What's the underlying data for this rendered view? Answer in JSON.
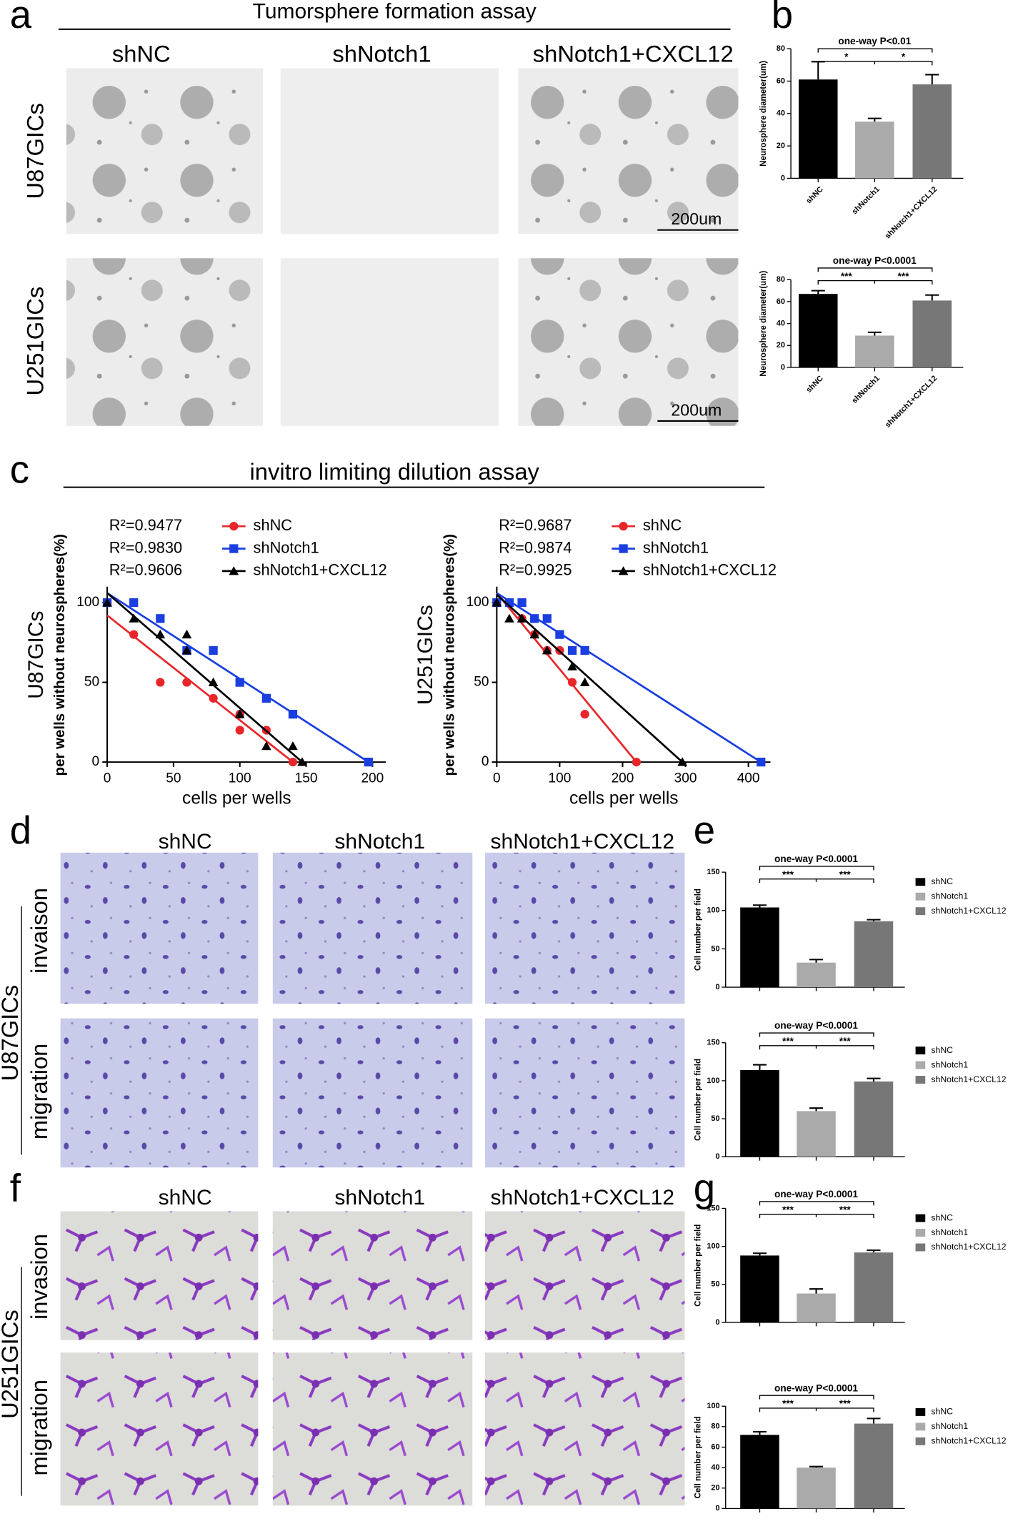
{
  "panel_labels": [
    "a",
    "b",
    "c",
    "d",
    "e",
    "f",
    "g"
  ],
  "tumorsphere": {
    "title": "Tumorsphere formation assay",
    "columns": [
      "shNC",
      "shNotch1",
      "shNotch1+CXCL12"
    ],
    "rows": [
      "U87GICs",
      "U251GICs"
    ],
    "scale_bar": "200um"
  },
  "dilution_title": "invitro limiting dilution assay",
  "transwell_u87": {
    "columns": [
      "shNC",
      "shNotch1",
      "shNotch1+CXCL12"
    ],
    "rows": [
      "invaison",
      "migration"
    ],
    "cell_line": "U87GICs"
  },
  "transwell_u251": {
    "columns": [
      "shNC",
      "shNotch1",
      "shNotch1+CXCL12"
    ],
    "rows": [
      "invasion",
      "migration"
    ],
    "cell_line": "U251GICs"
  },
  "chart_data": [
    {
      "type": "bar",
      "ylabel": "Neurosphere diameter(um)",
      "categories": [
        "shNC",
        "shNotch1",
        "shNotch1+CXCL12"
      ],
      "values": [
        61,
        35,
        58
      ],
      "errors": [
        11,
        2,
        6
      ],
      "colors": [
        "#000000",
        "#aaaaaa",
        "#777777"
      ],
      "ylim": [
        0,
        80
      ],
      "yticks": [
        0,
        20,
        40,
        60,
        80
      ],
      "annotations": {
        "overall": "one-way P<0.01",
        "left": "*",
        "right": "*"
      },
      "legend": false
    },
    {
      "type": "bar",
      "ylabel": "Neurosphere diameter(um)",
      "categories": [
        "shNC",
        "shNotch1",
        "shNotch1+CXCL12"
      ],
      "values": [
        67,
        29,
        61
      ],
      "errors": [
        3,
        3,
        5
      ],
      "colors": [
        "#000000",
        "#aaaaaa",
        "#777777"
      ],
      "ylim": [
        0,
        80
      ],
      "yticks": [
        0,
        20,
        40,
        60,
        80
      ],
      "annotations": {
        "overall": "one-way P<0.0001",
        "left": "***",
        "right": "***"
      },
      "legend": false
    },
    {
      "type": "scatter",
      "group": "U87GICs",
      "ylabel": "per wells without neurospheres(%)",
      "xlabel": "cells per wells",
      "xlim": [
        0,
        210
      ],
      "ylim": [
        0,
        110
      ],
      "xticks": [
        0,
        50,
        100,
        150,
        200
      ],
      "yticks": [
        0,
        50,
        100
      ],
      "series": [
        {
          "name": "shNC",
          "color": "#e8262a",
          "marker": "circle",
          "r2": "R²=0.9477",
          "x": [
            0,
            20,
            40,
            60,
            80,
            100,
            100,
            120,
            140
          ],
          "values": [
            100,
            80,
            50,
            50,
            40,
            20,
            30,
            20,
            0
          ],
          "fit_x": [
            0,
            140
          ],
          "fit_y": [
            92,
            0
          ]
        },
        {
          "name": "shNotch1",
          "color": "#1a3ee0",
          "marker": "square",
          "r2": "R²=0.9830",
          "x": [
            0,
            20,
            40,
            60,
            80,
            100,
            120,
            140,
            197
          ],
          "values": [
            100,
            100,
            90,
            70,
            70,
            50,
            40,
            30,
            0
          ],
          "fit_x": [
            0,
            197
          ],
          "fit_y": [
            106,
            0
          ]
        },
        {
          "name": "shNotch1+CXCL12",
          "color": "#000000",
          "marker": "triangle",
          "r2": "R²=0.9606",
          "x": [
            0,
            20,
            40,
            60,
            60,
            80,
            100,
            120,
            140,
            147
          ],
          "values": [
            100,
            90,
            80,
            80,
            70,
            50,
            30,
            10,
            10,
            0
          ],
          "fit_x": [
            0,
            147
          ],
          "fit_y": [
            106,
            0
          ]
        }
      ]
    },
    {
      "type": "scatter",
      "group": "U251GICs",
      "ylabel": "per wells without neurospheres(%)",
      "xlabel": "cells per wells",
      "xlim": [
        0,
        435
      ],
      "ylim": [
        0,
        110
      ],
      "xticks": [
        0,
        100,
        200,
        300,
        400
      ],
      "yticks": [
        0,
        50,
        100
      ],
      "series": [
        {
          "name": "shNC",
          "color": "#e8262a",
          "marker": "circle",
          "r2": "R²=0.9687",
          "x": [
            0,
            20,
            40,
            60,
            80,
            100,
            120,
            140,
            222
          ],
          "values": [
            100,
            100,
            90,
            80,
            70,
            70,
            50,
            30,
            0
          ],
          "fit_x": [
            0,
            222
          ],
          "fit_y": [
            106,
            0
          ]
        },
        {
          "name": "shNotch1",
          "color": "#1a3ee0",
          "marker": "square",
          "r2": "R²=0.9874",
          "x": [
            0,
            20,
            40,
            60,
            80,
            100,
            120,
            140,
            420
          ],
          "values": [
            100,
            100,
            100,
            90,
            90,
            80,
            70,
            70,
            0
          ],
          "fit_x": [
            0,
            420
          ],
          "fit_y": [
            106,
            0
          ]
        },
        {
          "name": "shNotch1+CXCL12",
          "color": "#000000",
          "marker": "triangle",
          "r2": "R²=0.9925",
          "x": [
            0,
            20,
            40,
            60,
            80,
            120,
            140,
            295
          ],
          "values": [
            100,
            90,
            90,
            80,
            70,
            60,
            50,
            0
          ],
          "fit_x": [
            0,
            295
          ],
          "fit_y": [
            105,
            0
          ]
        }
      ]
    },
    {
      "type": "bar",
      "ylabel": "Cell number per field",
      "categories": [
        "shNC",
        "shNotch1",
        "shNotch1+CXCL12"
      ],
      "values": [
        104,
        32,
        86
      ],
      "errors": [
        3,
        4,
        2
      ],
      "colors": [
        "#000000",
        "#aaaaaa",
        "#777777"
      ],
      "ylim": [
        0,
        150
      ],
      "yticks": [
        0,
        50,
        100,
        150
      ],
      "annotations": {
        "overall": "one-way P<0.0001",
        "left": "***",
        "right": "***"
      },
      "legend": true
    },
    {
      "type": "bar",
      "ylabel": "Cell number per field",
      "categories": [
        "shNC",
        "shNotch1",
        "shNotch1+CXCL12"
      ],
      "values": [
        114,
        60,
        99
      ],
      "errors": [
        7,
        4,
        4
      ],
      "colors": [
        "#000000",
        "#aaaaaa",
        "#777777"
      ],
      "ylim": [
        0,
        150
      ],
      "yticks": [
        0,
        50,
        100,
        150
      ],
      "annotations": {
        "overall": "one-way P<0.0001",
        "left": "***",
        "right": "***"
      },
      "legend": true
    },
    {
      "type": "bar",
      "ylabel": "Cell number per field",
      "categories": [
        "shNC",
        "shNotch1",
        "shNotch1+CXCL12"
      ],
      "values": [
        88,
        38,
        92
      ],
      "errors": [
        3,
        6,
        3
      ],
      "colors": [
        "#000000",
        "#aaaaaa",
        "#777777"
      ],
      "ylim": [
        0,
        150
      ],
      "yticks": [
        0,
        50,
        100,
        150
      ],
      "annotations": {
        "overall": "one-way P<0.0001",
        "left": "***",
        "right": "***"
      },
      "legend": true
    },
    {
      "type": "bar",
      "ylabel": "Cell number per field",
      "categories": [
        "shNC",
        "shNotch1",
        "shNotch1+CXCL12"
      ],
      "values": [
        72,
        40,
        83
      ],
      "errors": [
        3,
        1,
        5
      ],
      "colors": [
        "#000000",
        "#aaaaaa",
        "#777777"
      ],
      "ylim": [
        0,
        100
      ],
      "yticks": [
        0,
        20,
        40,
        60,
        80,
        100
      ],
      "annotations": {
        "overall": "one-way P<0.0001",
        "left": "***",
        "right": "***"
      },
      "legend": true
    }
  ]
}
